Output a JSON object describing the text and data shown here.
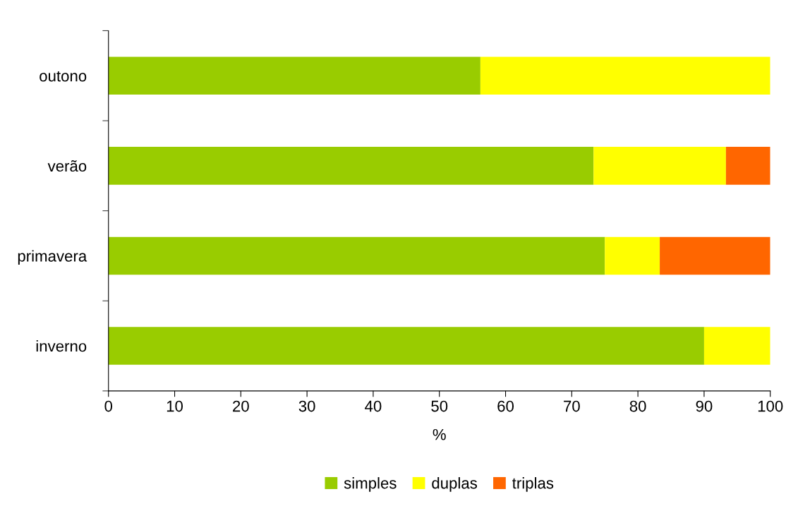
{
  "chart_data": {
    "type": "bar",
    "orientation": "horizontal",
    "stacked": true,
    "categories": [
      "outono",
      "verão",
      "primavera",
      "inverno"
    ],
    "series": [
      {
        "name": "simples",
        "color": "#99cc00",
        "values": [
          56.2,
          73.3,
          75,
          90
        ]
      },
      {
        "name": "duplas",
        "color": "#ffff00",
        "values": [
          43.8,
          20,
          8.3,
          10
        ]
      },
      {
        "name": "triplas",
        "color": "#ff6600",
        "values": [
          0,
          6.7,
          16.7,
          0
        ]
      }
    ],
    "xlabel": "%",
    "xlim": [
      0,
      100
    ],
    "xticks": [
      0,
      10,
      20,
      30,
      40,
      50,
      60,
      70,
      80,
      90,
      100
    ],
    "grid": false,
    "legend": "bottom"
  }
}
